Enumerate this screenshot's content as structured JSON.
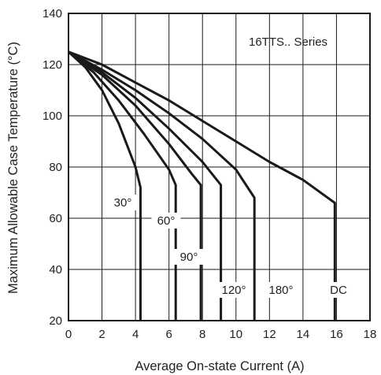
{
  "chart_data": {
    "type": "line",
    "title": "",
    "xlabel": "Average On-state Current (A)",
    "ylabel": "Maximum Allowable Case Temperature (°C)",
    "xlim": [
      0,
      18
    ],
    "ylim": [
      20,
      140
    ],
    "x_ticks": [
      "0",
      "2",
      "4",
      "6",
      "8",
      "10",
      "12",
      "14",
      "16",
      "18"
    ],
    "y_ticks": [
      "20",
      "40",
      "60",
      "80",
      "100",
      "120",
      "140"
    ],
    "grid": true,
    "annotation": "16TTS.. Series",
    "colors": {
      "curve": "#1a1a1a",
      "grid": "#1a1a1a",
      "background": "#ffffff"
    },
    "series": [
      {
        "name": "30°",
        "points": [
          [
            0,
            125
          ],
          [
            1,
            119
          ],
          [
            2,
            110
          ],
          [
            3,
            97
          ],
          [
            4,
            80
          ],
          [
            4.3,
            72
          ],
          [
            4.3,
            20
          ]
        ]
      },
      {
        "name": "60°",
        "points": [
          [
            0,
            125
          ],
          [
            1.5,
            117
          ],
          [
            3,
            106
          ],
          [
            4.5,
            93
          ],
          [
            6,
            79
          ],
          [
            6.4,
            73
          ],
          [
            6.4,
            20
          ]
        ]
      },
      {
        "name": "90°",
        "points": [
          [
            0,
            125
          ],
          [
            2,
            116
          ],
          [
            4,
            104
          ],
          [
            6,
            89
          ],
          [
            7.4,
            77
          ],
          [
            7.9,
            73
          ],
          [
            7.9,
            20
          ]
        ]
      },
      {
        "name": "120°",
        "points": [
          [
            0,
            125
          ],
          [
            2,
            117
          ],
          [
            4,
            107
          ],
          [
            6,
            95
          ],
          [
            8,
            82
          ],
          [
            9.1,
            73
          ],
          [
            9.1,
            20
          ]
        ]
      },
      {
        "name": "180°",
        "points": [
          [
            0,
            125
          ],
          [
            2,
            118
          ],
          [
            4,
            110
          ],
          [
            6,
            101
          ],
          [
            8,
            91
          ],
          [
            10,
            79
          ],
          [
            11.1,
            68
          ],
          [
            11.1,
            20
          ]
        ]
      },
      {
        "name": "DC",
        "points": [
          [
            0,
            125
          ],
          [
            2,
            120
          ],
          [
            4,
            113
          ],
          [
            6,
            106
          ],
          [
            8,
            98
          ],
          [
            10,
            90
          ],
          [
            12,
            82
          ],
          [
            14,
            75
          ],
          [
            15.9,
            66
          ],
          [
            15.9,
            20
          ]
        ]
      }
    ]
  }
}
